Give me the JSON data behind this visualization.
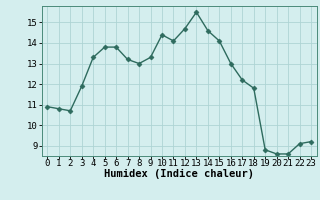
{
  "x": [
    0,
    1,
    2,
    3,
    4,
    5,
    6,
    7,
    8,
    9,
    10,
    11,
    12,
    13,
    14,
    15,
    16,
    17,
    18,
    19,
    20,
    21,
    22,
    23
  ],
  "y": [
    10.9,
    10.8,
    10.7,
    11.9,
    13.3,
    13.8,
    13.8,
    13.2,
    13.0,
    13.3,
    14.4,
    14.1,
    14.7,
    15.5,
    14.6,
    14.1,
    13.0,
    12.2,
    11.8,
    8.8,
    8.6,
    8.6,
    9.1,
    9.2
  ],
  "line_color": "#2e6b5e",
  "marker": "D",
  "marker_size": 2.5,
  "bg_color": "#d4eeee",
  "grid_color": "#aed4d4",
  "xlabel": "Humidex (Indice chaleur)",
  "xlim": [
    -0.5,
    23.5
  ],
  "ylim": [
    8.5,
    15.8
  ],
  "yticks": [
    9,
    10,
    11,
    12,
    13,
    14,
    15
  ],
  "xticks": [
    0,
    1,
    2,
    3,
    4,
    5,
    6,
    7,
    8,
    9,
    10,
    11,
    12,
    13,
    14,
    15,
    16,
    17,
    18,
    19,
    20,
    21,
    22,
    23
  ],
  "tick_label_size": 6.5,
  "xlabel_size": 7.5,
  "xlabel_weight": "bold",
  "line_width": 1.0,
  "font_family": "monospace"
}
